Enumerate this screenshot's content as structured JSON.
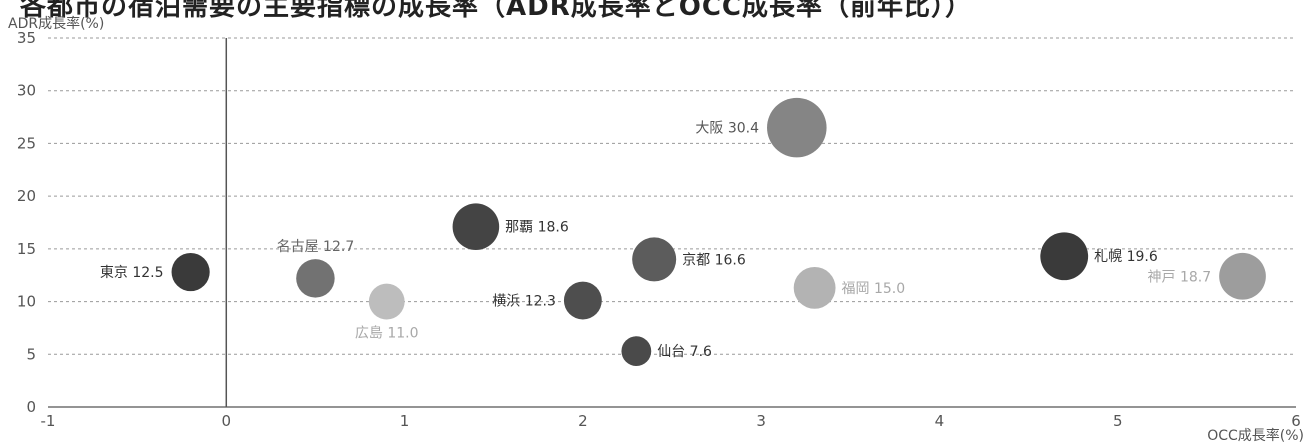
{
  "title": "各都市の宿泊需要の主要指標の成長率（ADR成長率とOCC成長率（前年比））",
  "chart_data": {
    "type": "scatter",
    "xlabel": "OCC成長率(%)",
    "ylabel": "ADR成長率(%)",
    "xlim": [
      -1,
      6
    ],
    "ylim": [
      0,
      35
    ],
    "x_ticks": [
      "-1",
      "0",
      "1",
      "2",
      "3",
      "4",
      "5",
      "6"
    ],
    "y_ticks": [
      "0",
      "5",
      "10",
      "15",
      "20",
      "25",
      "30",
      "35"
    ],
    "grid": "horizontal-dashed",
    "points": [
      {
        "label": "東京 12.5",
        "x": -0.2,
        "y": 12.8,
        "size": 12.5,
        "color": "#3a3a3a",
        "label_color": "#333333",
        "label_side": "left"
      },
      {
        "label": "名古屋 12.7",
        "x": 0.5,
        "y": 12.2,
        "size": 12.7,
        "color": "#727272",
        "label_color": "#666666",
        "label_side": "above"
      },
      {
        "label": "広島 11.0",
        "x": 0.9,
        "y": 10.0,
        "size": 11.0,
        "color": "#bdbdbd",
        "label_color": "#a8a8a8",
        "label_side": "below"
      },
      {
        "label": "那覇 18.6",
        "x": 1.4,
        "y": 17.1,
        "size": 18.6,
        "color": "#444444",
        "label_color": "#333333",
        "label_side": "right"
      },
      {
        "label": "横浜 12.3",
        "x": 2.0,
        "y": 10.1,
        "size": 12.3,
        "color": "#4e4e4e",
        "label_color": "#333333",
        "label_side": "left"
      },
      {
        "label": "京都 16.6",
        "x": 2.4,
        "y": 14.0,
        "size": 16.6,
        "color": "#5c5c5c",
        "label_color": "#333333",
        "label_side": "right"
      },
      {
        "label": "仙台 7.6",
        "x": 2.3,
        "y": 5.3,
        "size": 7.6,
        "color": "#4a4a4a",
        "label_color": "#333333",
        "label_side": "right"
      },
      {
        "label": "大阪 30.4",
        "x": 3.2,
        "y": 26.5,
        "size": 30.4,
        "color": "#858585",
        "label_color": "#555555",
        "label_side": "left"
      },
      {
        "label": "福岡 15.0",
        "x": 3.3,
        "y": 11.3,
        "size": 15.0,
        "color": "#b3b3b3",
        "label_color": "#a8a8a8",
        "label_side": "right"
      },
      {
        "label": "札幌 19.6",
        "x": 4.7,
        "y": 14.3,
        "size": 19.6,
        "color": "#3a3a3a",
        "label_color": "#333333",
        "label_side": "right"
      },
      {
        "label": "神戸 18.7",
        "x": 5.7,
        "y": 12.4,
        "size": 18.7,
        "color": "#9d9d9d",
        "label_color": "#a8a8a8",
        "label_side": "left"
      }
    ]
  }
}
